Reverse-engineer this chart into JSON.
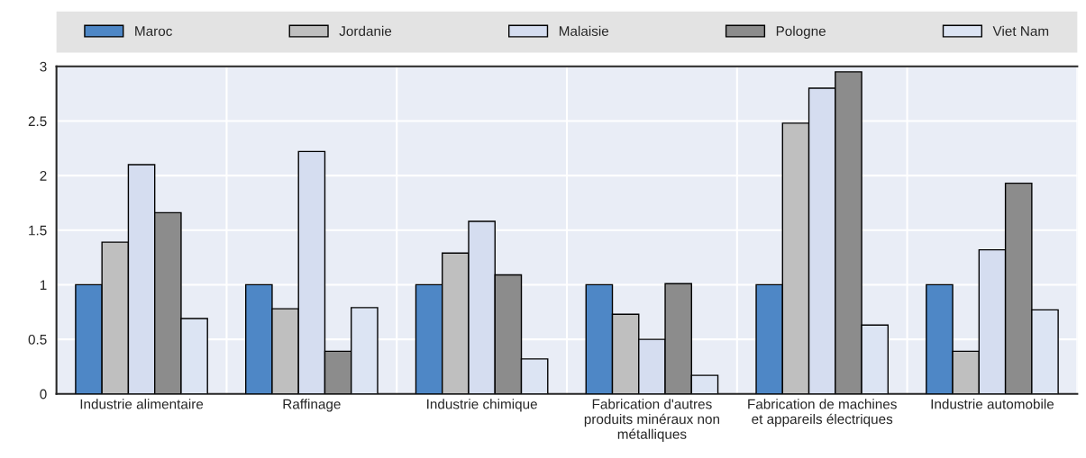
{
  "chart_data": {
    "type": "bar",
    "categories": [
      "Industrie alimentaire",
      "Raffinage",
      "Industrie chimique",
      "Fabrication d'autres\nproduits minéraux non\nmétalliques",
      "Fabrication de machines\net appareils électriques",
      "Industrie automobile"
    ],
    "series": [
      {
        "name": "Maroc",
        "color": "#4e87c6",
        "values": [
          1,
          1,
          1,
          1,
          1,
          1
        ]
      },
      {
        "name": "Jordanie",
        "color": "#bfbfbf",
        "values": [
          1.39,
          0.78,
          1.29,
          0.73,
          2.48,
          0.39
        ]
      },
      {
        "name": "Malaisie",
        "color": "#d5ddf0",
        "values": [
          2.1,
          2.22,
          1.58,
          0.5,
          2.8,
          1.32
        ]
      },
      {
        "name": "Pologne",
        "color": "#8c8c8c",
        "values": [
          1.66,
          0.39,
          1.09,
          1.01,
          2.95,
          1.93
        ]
      },
      {
        "name": "Viet Nam",
        "color": "#dce4f3",
        "values": [
          0.69,
          0.79,
          0.32,
          0.17,
          0.63,
          0.77
        ]
      }
    ],
    "ylim": [
      0,
      3
    ],
    "yticks": [
      0,
      0.5,
      1,
      1.5,
      2,
      2.5,
      3
    ],
    "grid": true,
    "legend": "top"
  }
}
